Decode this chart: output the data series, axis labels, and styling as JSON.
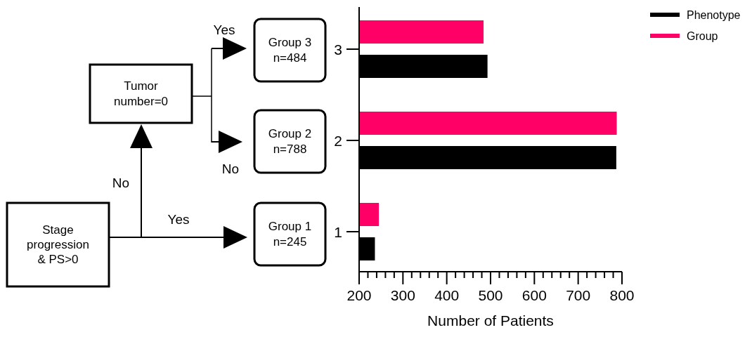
{
  "chart_data": {
    "type": "bar",
    "orientation": "horizontal",
    "categories": [
      "3",
      "2",
      "1"
    ],
    "series": [
      {
        "name": "Phenotype",
        "color": "#000000",
        "values": [
          493,
          787,
          236
        ]
      },
      {
        "name": "Group",
        "color": "#ff0066",
        "values": [
          484,
          788,
          245
        ]
      }
    ],
    "xlim": [
      200,
      800
    ],
    "xticks": [
      200,
      {
        "value": 220,
        "label": null
      },
      {
        "value": 240,
        "label": null
      },
      {
        "value": 260,
        "label": null
      },
      {
        "value": 280,
        "label": null
      },
      300,
      {
        "value": 320,
        "label": null
      },
      {
        "value": 340,
        "label": null
      },
      {
        "value": 360,
        "label": null
      },
      {
        "value": 380,
        "label": null
      },
      400,
      {
        "value": 420,
        "label": null
      },
      {
        "value": 440,
        "label": null
      },
      {
        "value": 460,
        "label": null
      },
      {
        "value": 480,
        "label": null
      },
      500,
      {
        "value": 520,
        "label": null
      },
      {
        "value": 540,
        "label": null
      },
      {
        "value": 560,
        "label": null
      },
      {
        "value": 580,
        "label": null
      },
      600,
      {
        "value": 620,
        "label": null
      },
      {
        "value": 640,
        "label": null
      },
      {
        "value": 660,
        "label": null
      },
      {
        "value": 680,
        "label": null
      },
      700,
      {
        "value": 720,
        "label": null
      },
      {
        "value": 740,
        "label": null
      },
      {
        "value": 760,
        "label": null
      },
      {
        "value": 780,
        "label": null
      },
      800
    ],
    "xlabel": "Number of Patients",
    "legend": "top right",
    "grid": false,
    "annotations": [
      "Stage\nprogression\n& PS>0",
      "Tumor\nnumber=0",
      "Group 3\nn=484",
      "Group 2\nn=788",
      "Group 1\nn=245",
      "Yes",
      "No",
      "Yes",
      "No"
    ]
  }
}
